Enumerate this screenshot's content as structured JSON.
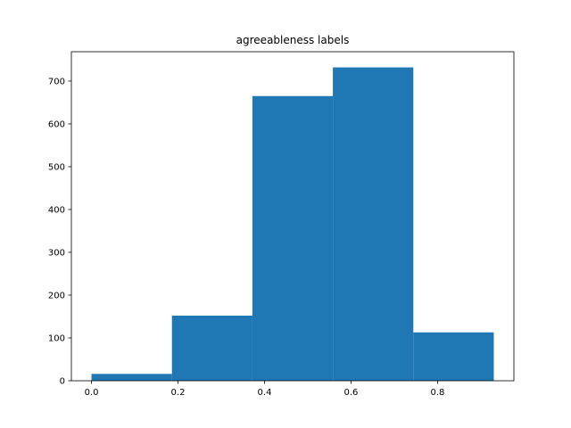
{
  "chart_data": {
    "type": "bar",
    "title": "agreeableness labels",
    "xlabel": "",
    "ylabel": "",
    "bins": [
      {
        "x0": 0.0,
        "x1": 0.186,
        "count": 16
      },
      {
        "x0": 0.186,
        "x1": 0.372,
        "count": 152
      },
      {
        "x0": 0.372,
        "x1": 0.558,
        "count": 665
      },
      {
        "x0": 0.558,
        "x1": 0.744,
        "count": 732
      },
      {
        "x0": 0.744,
        "x1": 0.93,
        "count": 113
      }
    ],
    "xlim": [
      -0.0465,
      0.9765
    ],
    "ylim": [
      0,
      768.6
    ],
    "xticks": [
      0.0,
      0.2,
      0.4,
      0.6,
      0.8
    ],
    "xtick_labels": [
      "0.0",
      "0.2",
      "0.4",
      "0.6",
      "0.8"
    ],
    "yticks": [
      0,
      100,
      200,
      300,
      400,
      500,
      600,
      700
    ],
    "ytick_labels": [
      "0",
      "100",
      "200",
      "300",
      "400",
      "500",
      "600",
      "700"
    ],
    "bar_color": "#1f77b4",
    "grid": false,
    "legend": "none"
  }
}
